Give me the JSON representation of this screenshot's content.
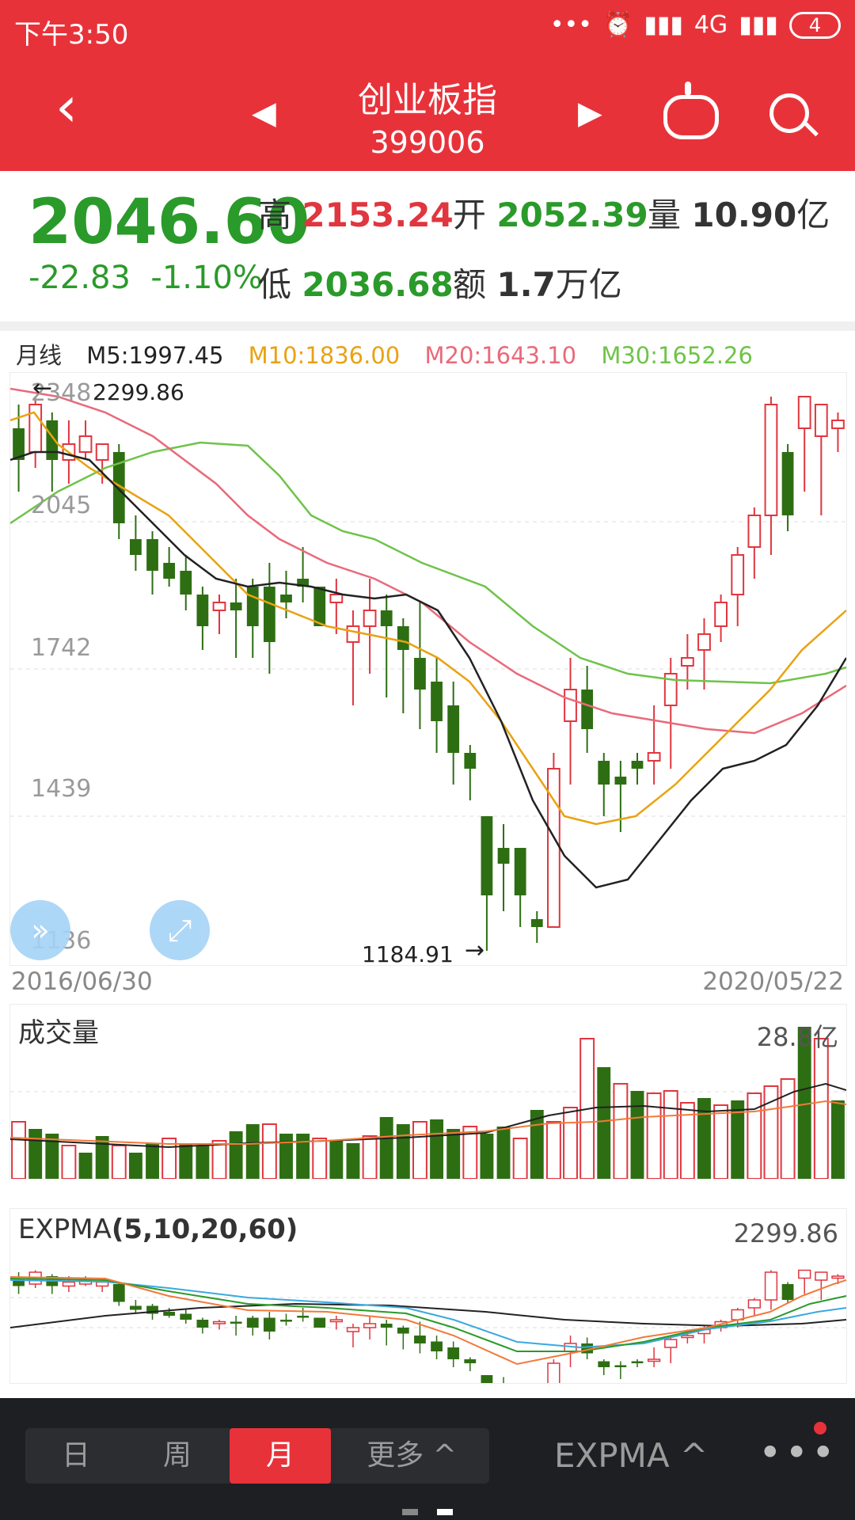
{
  "status": {
    "time": "下午3:50",
    "signal": "4G",
    "battery": "4"
  },
  "header": {
    "title": "创业板指",
    "code": "399006"
  },
  "quote": {
    "price": "2046.60",
    "change": "-22.83",
    "change_pct": "-1.10%",
    "high_label": "高",
    "high": "2153.24",
    "open_label": "开",
    "open": "2052.39",
    "volume_label": "量",
    "volume_num": "10.90",
    "volume_unit": "亿",
    "low_label": "低",
    "low": "2036.68",
    "amount_label": "额",
    "amount_num": "1.7",
    "amount_unit": "万亿"
  },
  "chart": {
    "period_label": "月线",
    "ma": [
      {
        "label": "M5:1997.45",
        "color": "#222222"
      },
      {
        "label": "M10:1836.00",
        "color": "#e9a212"
      },
      {
        "label": "M20:1643.10",
        "color": "#e96a7a"
      },
      {
        "label": "M30:1652.26",
        "color": "#6fc349"
      }
    ],
    "y_ticks": [
      "2348",
      "2045",
      "1742",
      "1439",
      "1136"
    ],
    "max_marker": "2299.86",
    "min_marker": "1184.91",
    "start_date": "2016/06/30",
    "end_date": "2020/05/22",
    "up_color": "#e0363f",
    "down_color": "#2e6e13"
  },
  "volume": {
    "title": "成交量",
    "max_label": "28.8亿"
  },
  "indicator": {
    "title": "EXPMA",
    "params": "(5,10,20,60)",
    "max_label": "2299.86"
  },
  "bottom": {
    "tabs": [
      {
        "label": "日",
        "active": false
      },
      {
        "label": "周",
        "active": false
      },
      {
        "label": "月",
        "active": true
      },
      {
        "label": "更多 ^",
        "active": false
      }
    ],
    "indicator_button": "EXPMA ^",
    "more_icon": "more-dots"
  }
}
